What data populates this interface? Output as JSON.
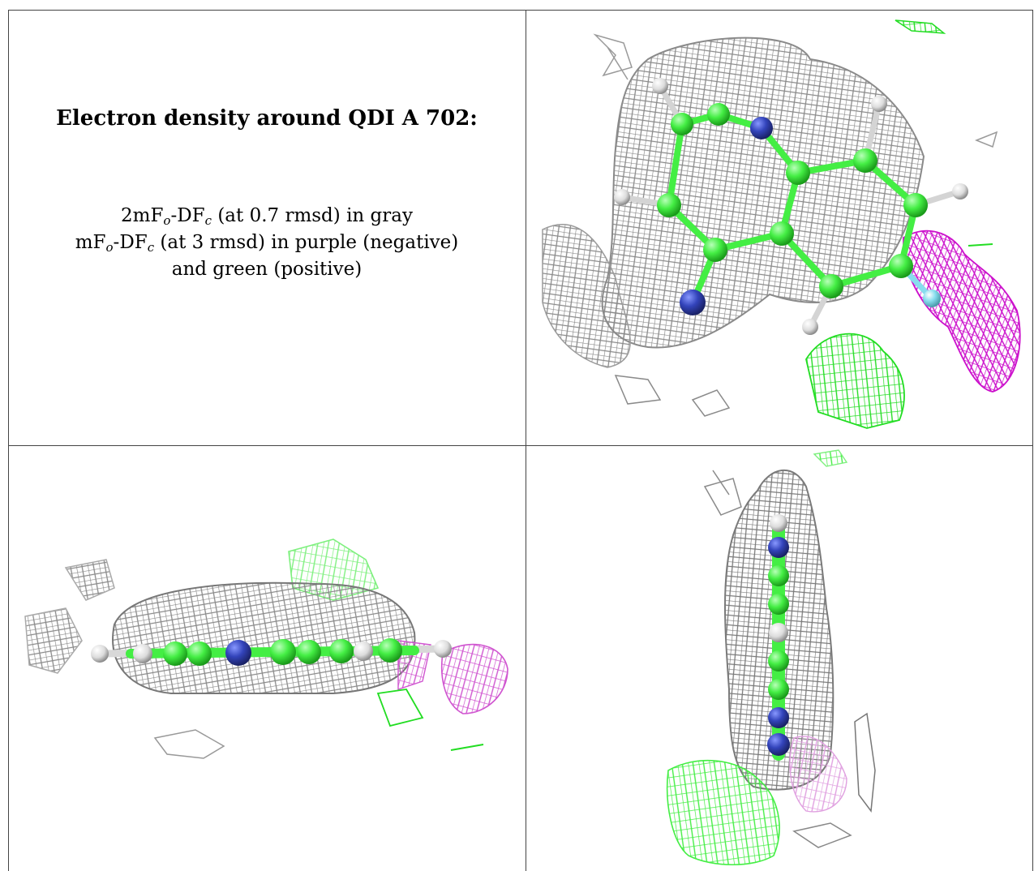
{
  "caption": {
    "title": "Electron density around QDI A 702:",
    "line1": {
      "prefix": "2mF",
      "sub1": "o",
      "mid": "-DF",
      "sub2": "c",
      "suffix": " (at 0.7 rmsd) in gray"
    },
    "line2": {
      "prefix": "mF",
      "sub1": "o",
      "mid": "-DF",
      "sub2": "c",
      "suffix": " (at 3 rmsd) in purple (negative)"
    },
    "line3": "and green (positive)"
  },
  "colors": {
    "positive_density": "#22dd22",
    "negative_density": "#cc11cc",
    "map_2fofc": "#9a9a9a",
    "carbon": "#44ee44",
    "nitrogen": "#3344bb",
    "hydrogen": "#e8e8e8",
    "halogen": "#88ddee"
  },
  "panels": [
    {
      "view": "top-view-ligand-density"
    },
    {
      "view": "side-view-ligand-density"
    },
    {
      "view": "edge-view-ligand-density"
    }
  ]
}
